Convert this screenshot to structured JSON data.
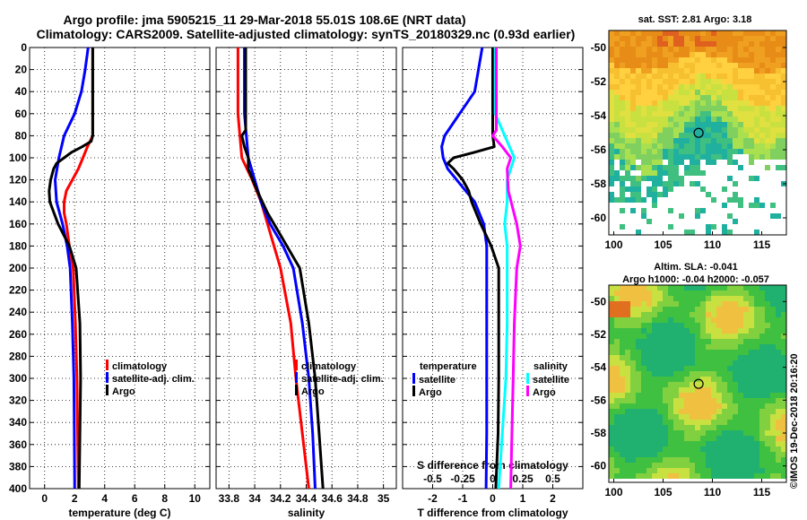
{
  "title": {
    "line1": "Argo profile: jma 5905215_11 29-Mar-2018 55.01S 108.6E (NRT data)",
    "line2": "Climatology: CARS2009. Satellite-adjusted climatology: synTS_20180329.nc (0.93d earlier)"
  },
  "colors": {
    "climatology": "#ff0000",
    "satellite": "#0000ff",
    "argo": "#000000",
    "sat_salinity": "#00ffff",
    "clim_salinity": "#ff00ff"
  },
  "chart_data": [
    {
      "type": "line",
      "name": "temperature",
      "xlabel": "temperature (deg C)",
      "ylabel": "",
      "xlim": [
        -1,
        11
      ],
      "ylim": [
        400,
        0
      ],
      "xticks": [
        "0",
        "2",
        "4",
        "6",
        "8",
        "10"
      ],
      "yticks": [
        "0",
        "20",
        "40",
        "60",
        "80",
        "100",
        "120",
        "140",
        "160",
        "180",
        "200",
        "220",
        "240",
        "260",
        "280",
        "300",
        "320",
        "340",
        "360",
        "380",
        "400"
      ],
      "legend": [
        "climatology",
        "satellite-adj. clim.",
        "Argo"
      ],
      "series": [
        {
          "name": "climatology",
          "depth": [
            0,
            60,
            80,
            90,
            100,
            110,
            120,
            130,
            140,
            150,
            160,
            180,
            200,
            250,
            300,
            350,
            400
          ],
          "values": [
            3.2,
            3.2,
            3.2,
            2.85,
            2.55,
            2.25,
            1.85,
            1.45,
            1.3,
            1.3,
            1.45,
            1.65,
            1.9,
            2.05,
            2.15,
            2.2,
            2.25
          ]
        },
        {
          "name": "satellite-adj. clim.",
          "depth": [
            0,
            20,
            40,
            60,
            80,
            100,
            120,
            140,
            160,
            180,
            200,
            250,
            300,
            350,
            400
          ],
          "values": [
            2.9,
            2.7,
            2.45,
            2.0,
            1.3,
            0.95,
            0.7,
            0.8,
            1.2,
            1.5,
            1.7,
            1.85,
            1.95,
            1.98,
            2.0
          ]
        },
        {
          "name": "Argo",
          "depth": [
            0,
            60,
            80,
            85,
            90,
            95,
            100,
            105,
            110,
            120,
            130,
            140,
            160,
            180,
            200,
            250,
            300,
            350,
            400
          ],
          "values": [
            3.2,
            3.2,
            3.2,
            3.1,
            2.5,
            1.8,
            1.3,
            0.8,
            0.6,
            0.4,
            0.3,
            0.35,
            0.9,
            1.65,
            2.1,
            2.35,
            2.4,
            2.35,
            2.3
          ]
        }
      ]
    },
    {
      "type": "line",
      "name": "salinity",
      "xlabel": "salinity",
      "ylabel": "",
      "xlim": [
        33.7,
        35.1
      ],
      "ylim": [
        400,
        0
      ],
      "xticks": [
        "33.8",
        "34",
        "34.2",
        "34.4",
        "34.6",
        "34.8",
        "35"
      ],
      "legend": [
        "climatology",
        "satellite-adj. clim.",
        "Argo"
      ],
      "series": [
        {
          "name": "climatology",
          "depth": [
            0,
            60,
            100,
            120,
            140,
            160,
            180,
            200,
            250,
            300,
            350,
            400
          ],
          "values": [
            33.87,
            33.87,
            33.9,
            33.98,
            34.05,
            34.1,
            34.15,
            34.2,
            34.28,
            34.32,
            34.37,
            34.42
          ]
        },
        {
          "name": "satellite-adj. clim.",
          "depth": [
            0,
            60,
            100,
            140,
            160,
            180,
            200,
            250,
            300,
            350,
            400
          ],
          "values": [
            33.92,
            33.92,
            33.95,
            34.05,
            34.12,
            34.22,
            34.3,
            34.37,
            34.42,
            34.45,
            34.47
          ]
        },
        {
          "name": "Argo",
          "depth": [
            0,
            60,
            75,
            80,
            90,
            100,
            110,
            130,
            150,
            170,
            190,
            200,
            250,
            300,
            350,
            400
          ],
          "values": [
            33.93,
            33.93,
            33.93,
            33.9,
            33.92,
            33.95,
            33.95,
            34.02,
            34.1,
            34.2,
            34.3,
            34.35,
            34.42,
            34.47,
            34.5,
            34.53
          ]
        }
      ]
    },
    {
      "type": "line",
      "name": "difference from climatology",
      "xlabel": "T difference from climatology",
      "top_xlabel": "S difference from climatology",
      "xlim": [
        -3,
        3
      ],
      "ylim": [
        400,
        0
      ],
      "xticks": [
        "-2",
        "-1",
        "0",
        "1",
        "2"
      ],
      "top_ticks": [
        "-0.5",
        "-0.25",
        "0",
        "0.25",
        "0.5"
      ],
      "legend_temperature_title": "temperature",
      "legend_salinity_title": "salinity",
      "legend_temperature": [
        "satellite",
        "Argo"
      ],
      "legend_salinity": [
        "satellite",
        "Argo"
      ],
      "series": [
        {
          "name": "temperature satellite",
          "depth": [
            0,
            40,
            60,
            80,
            90,
            100,
            110,
            120,
            140,
            160,
            180,
            200,
            250,
            300,
            350,
            400
          ],
          "values": [
            -0.35,
            -0.6,
            -1.1,
            -1.6,
            -1.7,
            -1.65,
            -1.5,
            -1.2,
            -0.6,
            -0.3,
            -0.2,
            -0.2,
            -0.2,
            -0.2,
            -0.2,
            -0.22
          ]
        },
        {
          "name": "temperature Argo",
          "depth": [
            0,
            60,
            80,
            90,
            95,
            100,
            105,
            110,
            120,
            130,
            140,
            160,
            180,
            200,
            250,
            300,
            350,
            400
          ],
          "values": [
            0,
            0,
            0,
            0.05,
            -0.6,
            -1.3,
            -1.5,
            -1.3,
            -1.0,
            -0.8,
            -0.7,
            -0.4,
            -0.05,
            0.2,
            0.2,
            0.2,
            0.18,
            0.1
          ]
        },
        {
          "name": "salinity satellite",
          "depth": [
            0,
            60,
            80,
            100,
            120,
            140,
            160,
            180,
            200,
            250,
            300,
            350,
            400
          ],
          "values": [
            0.02,
            0.02,
            0.1,
            0.18,
            0.12,
            0.12,
            0.1,
            0.12,
            0.12,
            0.12,
            0.11,
            0.08,
            0.05
          ]
        },
        {
          "name": "salinity Argo",
          "depth": [
            0,
            60,
            75,
            80,
            90,
            100,
            110,
            130,
            160,
            180,
            200,
            250,
            300,
            350,
            400
          ],
          "values": [
            0.03,
            0.03,
            0.03,
            0.0,
            0.08,
            0.15,
            0.12,
            0.13,
            0.2,
            0.23,
            0.2,
            0.18,
            0.17,
            0.16,
            0.15
          ]
        }
      ]
    }
  ],
  "map_sst": {
    "title": "sat. SST: 2.81 Argo: 3.18",
    "xticks": [
      "100",
      "105",
      "110",
      "115"
    ],
    "yticks": [
      "-50",
      "-52",
      "-54",
      "-56",
      "-58",
      "-60"
    ],
    "argo_lon": 108.6,
    "argo_lat": -55.01
  },
  "map_sla": {
    "title1": "Altim. SLA: -0.041",
    "title2": "Argo h1000: -0.04 h2000: -0.057",
    "xticks": [
      "100",
      "105",
      "110",
      "115"
    ],
    "yticks": [
      "-50",
      "-52",
      "-54",
      "-56",
      "-58",
      "-60"
    ],
    "argo_lon": 108.6,
    "argo_lat": -55.01
  },
  "watermark": "©IMOS 19-Dec-2018 20:16:20"
}
